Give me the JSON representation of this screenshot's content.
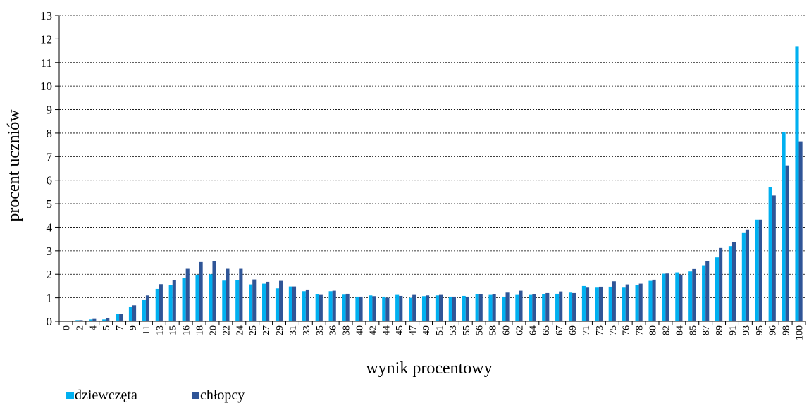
{
  "chart_data": {
    "type": "bar",
    "title": "",
    "xlabel": "wynik procentowy",
    "ylabel": "procent uczniów",
    "ylim": [
      0,
      13
    ],
    "y_ticks": [
      0,
      1,
      2,
      3,
      4,
      5,
      6,
      7,
      8,
      9,
      10,
      11,
      12,
      13
    ],
    "grid": "horizontal, dotted",
    "legend_position": "bottom-left",
    "categories": [
      "0",
      "2",
      "4",
      "5",
      "7",
      "9",
      "11",
      "13",
      "15",
      "16",
      "18",
      "20",
      "22",
      "24",
      "25",
      "27",
      "29",
      "31",
      "33",
      "35",
      "36",
      "38",
      "40",
      "42",
      "44",
      "45",
      "47",
      "49",
      "51",
      "53",
      "55",
      "56",
      "58",
      "60",
      "62",
      "64",
      "65",
      "67",
      "69",
      "71",
      "73",
      "75",
      "76",
      "78",
      "80",
      "82",
      "84",
      "85",
      "87",
      "89",
      "91",
      "93",
      "95",
      "96",
      "98",
      "100"
    ],
    "series": [
      {
        "name": "dziewczęta",
        "color": "#00B0F0",
        "values": [
          0.02,
          0.05,
          0.08,
          0.08,
          0.3,
          0.6,
          0.9,
          1.38,
          1.55,
          1.83,
          1.98,
          2.0,
          1.73,
          1.75,
          1.57,
          1.6,
          1.4,
          1.48,
          1.28,
          1.15,
          1.28,
          1.13,
          1.05,
          1.1,
          1.05,
          1.12,
          1.0,
          1.07,
          1.1,
          1.05,
          1.08,
          1.15,
          1.12,
          1.05,
          1.12,
          1.12,
          1.15,
          1.17,
          1.22,
          1.5,
          1.43,
          1.47,
          1.43,
          1.55,
          1.72,
          2.02,
          2.08,
          2.12,
          2.38,
          2.72,
          3.2,
          3.78,
          4.32,
          5.72,
          8.05,
          11.67
        ]
      },
      {
        "name": "chłopcy",
        "color": "#2F5597",
        "values": [
          0.02,
          0.05,
          0.1,
          0.15,
          0.3,
          0.68,
          1.1,
          1.58,
          1.75,
          2.23,
          2.52,
          2.57,
          2.23,
          2.23,
          1.78,
          1.68,
          1.72,
          1.48,
          1.35,
          1.12,
          1.3,
          1.17,
          1.05,
          1.07,
          1.0,
          1.08,
          1.12,
          1.1,
          1.12,
          1.05,
          1.05,
          1.15,
          1.15,
          1.22,
          1.3,
          1.15,
          1.2,
          1.27,
          1.2,
          1.43,
          1.47,
          1.7,
          1.57,
          1.6,
          1.77,
          2.03,
          1.98,
          2.22,
          2.57,
          3.12,
          3.37,
          3.9,
          4.32,
          5.35,
          6.63,
          7.65
        ]
      }
    ]
  }
}
